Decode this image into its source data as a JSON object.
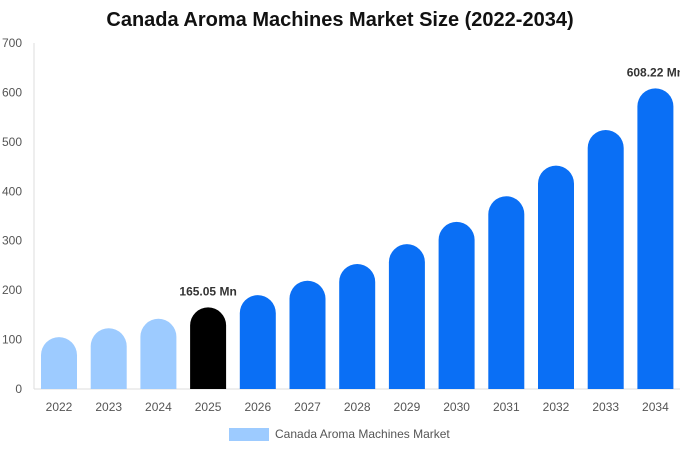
{
  "title": "Canada Aroma Machines Market Size (2022-2034)",
  "legend": {
    "label": "Canada Aroma Machines Market",
    "color": "#9dcbff"
  },
  "colors": {
    "historic": "#9dcbff",
    "base_year": "#000000",
    "forecast": "#0a6ff5",
    "axis": "#dddddd"
  },
  "chart_data": {
    "type": "bar",
    "title": "Canada Aroma Machines Market Size (2022-2034)",
    "xlabel": "",
    "ylabel": "",
    "ylim": [
      0,
      700
    ],
    "yticks": [
      0,
      100,
      200,
      300,
      400,
      500,
      600,
      700
    ],
    "grid": false,
    "legend_position": "bottom",
    "categories": [
      "2022",
      "2023",
      "2024",
      "2025",
      "2026",
      "2027",
      "2028",
      "2029",
      "2030",
      "2031",
      "2032",
      "2033",
      "2034"
    ],
    "series": [
      {
        "name": "Canada Aroma Machines Market",
        "values": [
          105,
          123,
          142,
          165.05,
          190,
          219,
          253,
          293,
          338,
          390,
          452,
          524,
          608.22
        ]
      }
    ],
    "bar_colors": [
      "historic",
      "historic",
      "historic",
      "base_year",
      "forecast",
      "forecast",
      "forecast",
      "forecast",
      "forecast",
      "forecast",
      "forecast",
      "forecast",
      "forecast"
    ],
    "data_labels": [
      {
        "category": "2025",
        "text": "165.05 Mn"
      },
      {
        "category": "2034",
        "text": "608.22 Mn"
      }
    ]
  }
}
